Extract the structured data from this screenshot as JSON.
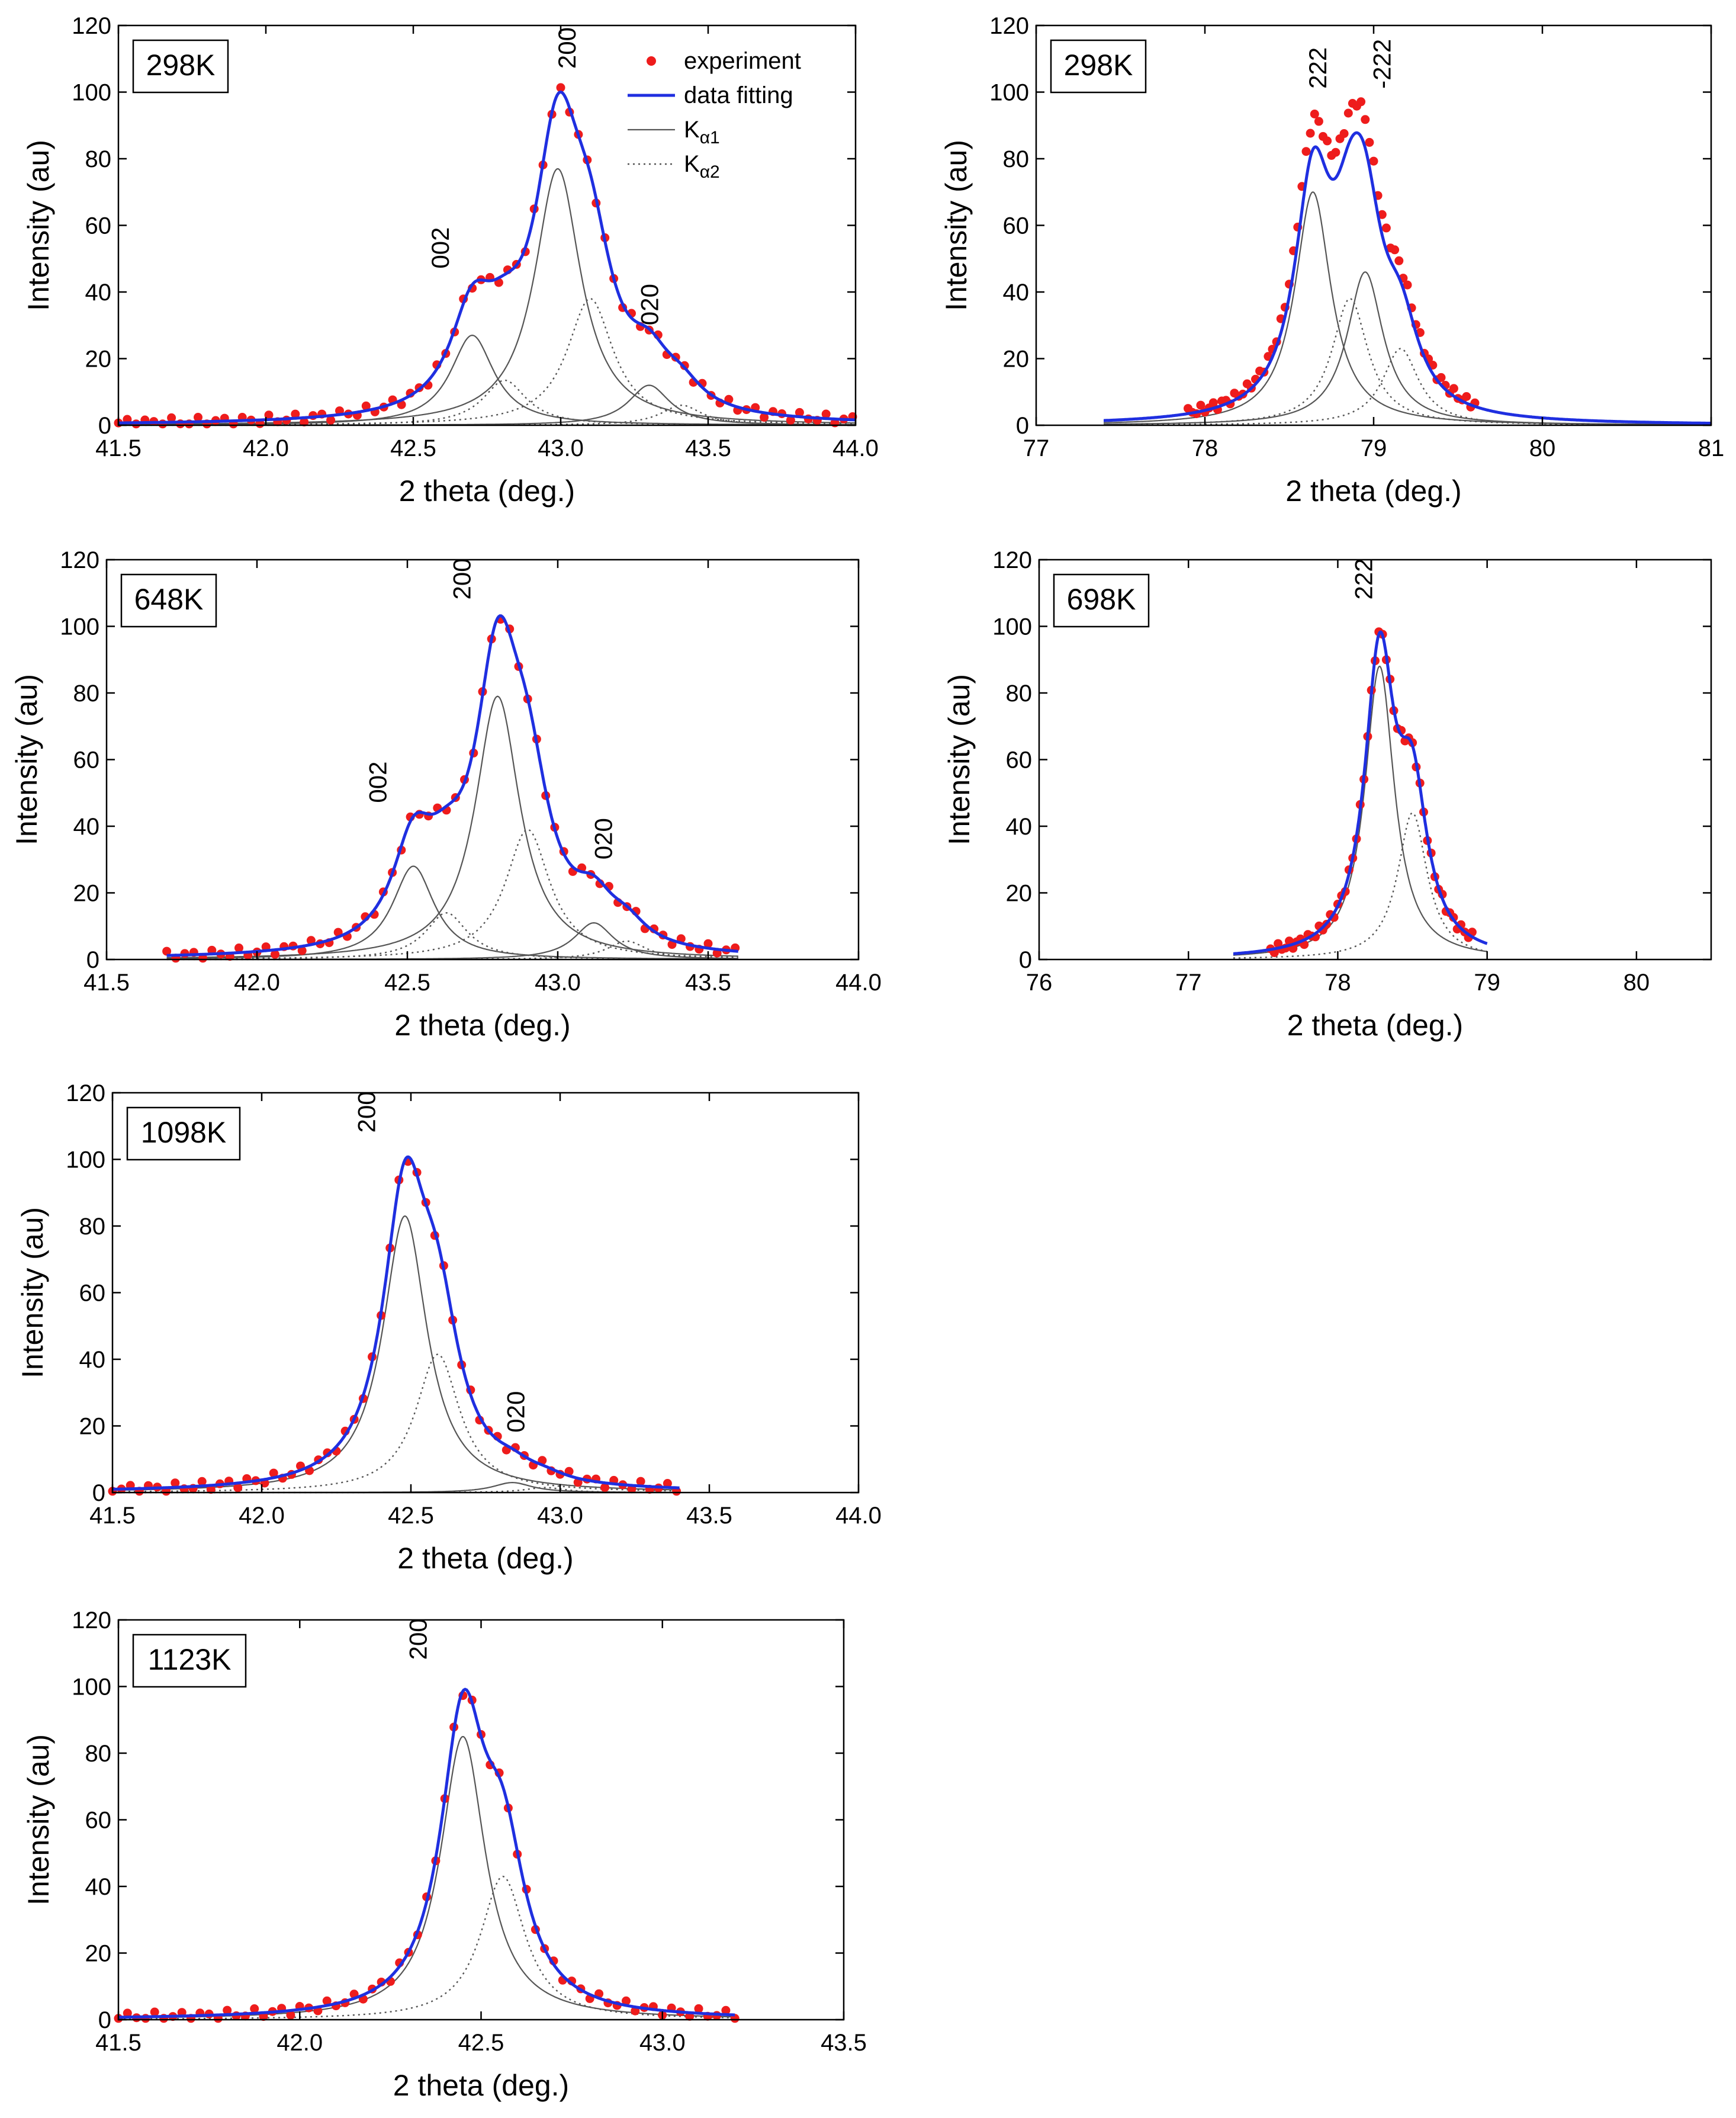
{
  "colors": {
    "experiment": "#ee1c1c",
    "fit": "#1f2fe0",
    "component": "#555555",
    "axis": "#000000"
  },
  "legend_entries": {
    "experiment": "experiment",
    "fit": "data fitting",
    "ka1_prefix": "K",
    "ka1_sub": "α1",
    "ka2_prefix": "K",
    "ka2_sub": "α2"
  },
  "chart_data": [
    {
      "id": "p1",
      "type": "line",
      "title": "298K",
      "xlabel": "2 theta (deg.)",
      "ylabel": "Intensity (au)",
      "xlim": [
        41.5,
        44.0
      ],
      "ylim": [
        0,
        120
      ],
      "xticks": [
        41.5,
        42.0,
        42.5,
        43.0,
        43.5,
        44.0
      ],
      "xtick_labels": [
        "41.5",
        "42.0",
        "42.5",
        "43.0",
        "43.5",
        "44.0"
      ],
      "yticks": [
        0,
        20,
        40,
        60,
        80,
        100,
        120
      ],
      "ytick_labels": [
        "0",
        "20",
        "40",
        "60",
        "80",
        "100",
        "120"
      ],
      "data_range": [
        41.5,
        44.0
      ],
      "exp_range": [
        41.5,
        44.0
      ],
      "exp_step": 0.03,
      "fit_scale": 1.0,
      "show_legend": true,
      "peaks": [
        {
          "label": "002",
          "ka1": {
            "x": 42.7,
            "h": 27,
            "w": 0.09
          },
          "ka2": {
            "x": 42.81,
            "h": 13.5,
            "w": 0.09
          }
        },
        {
          "label": "200",
          "ka1": {
            "x": 42.99,
            "h": 77,
            "w": 0.095
          },
          "ka2": {
            "x": 43.1,
            "h": 38,
            "w": 0.095
          }
        },
        {
          "label": "020",
          "ka1": {
            "x": 43.3,
            "h": 12,
            "w": 0.085
          },
          "ka2": {
            "x": 43.41,
            "h": 6,
            "w": 0.085
          }
        }
      ],
      "peak_labels": [
        {
          "text": "002",
          "x": 42.62,
          "y": 47
        },
        {
          "text": "200",
          "x": 43.05,
          "y": 107
        },
        {
          "text": "020",
          "x": 43.33,
          "y": 30
        }
      ]
    },
    {
      "id": "p2",
      "type": "line",
      "title": "298K",
      "xlabel": "2 theta (deg.)",
      "ylabel": "Intensity (au)",
      "xlim": [
        77,
        81
      ],
      "ylim": [
        0,
        120
      ],
      "xticks": [
        77,
        78,
        79,
        80,
        81
      ],
      "xtick_labels": [
        "77",
        "78",
        "79",
        "80",
        "81"
      ],
      "yticks": [
        0,
        20,
        40,
        60,
        80,
        100,
        120
      ],
      "ytick_labels": [
        "0",
        "20",
        "40",
        "60",
        "80",
        "100",
        "120"
      ],
      "data_range": [
        77.4,
        81.0
      ],
      "exp_range": [
        77.9,
        79.6
      ],
      "exp_step": 0.025,
      "fit_scale": 0.94,
      "show_legend": false,
      "peaks": [
        {
          "label": "222",
          "ka1": {
            "x": 78.64,
            "h": 70,
            "w": 0.13
          },
          "ka2": {
            "x": 78.86,
            "h": 38,
            "w": 0.13
          }
        },
        {
          "label": "-222",
          "ka1": {
            "x": 78.95,
            "h": 46,
            "w": 0.13
          },
          "ka2": {
            "x": 79.16,
            "h": 23,
            "w": 0.13
          }
        }
      ],
      "peak_labels": [
        {
          "text": "222",
          "x": 78.72,
          "y": 101
        },
        {
          "text": "-222",
          "x": 79.1,
          "y": 101
        }
      ]
    },
    {
      "id": "p3",
      "type": "line",
      "title": "648K",
      "xlabel": "2 theta (deg.)",
      "ylabel": "Intensity (au)",
      "xlim": [
        41.5,
        44.0
      ],
      "ylim": [
        0,
        120
      ],
      "xticks": [
        41.5,
        42.0,
        42.5,
        43.0,
        43.5,
        44.0
      ],
      "xtick_labels": [
        "41.5",
        "42.0",
        "42.5",
        "43.0",
        "43.5",
        "44.0"
      ],
      "yticks": [
        0,
        20,
        40,
        60,
        80,
        100,
        120
      ],
      "ytick_labels": [
        "0",
        "20",
        "40",
        "60",
        "80",
        "100",
        "120"
      ],
      "data_range": [
        41.7,
        43.6
      ],
      "exp_range": [
        41.7,
        43.6
      ],
      "exp_step": 0.03,
      "fit_scale": 1.0,
      "show_legend": false,
      "peaks": [
        {
          "label": "002",
          "ka1": {
            "x": 42.52,
            "h": 28,
            "w": 0.085
          },
          "ka2": {
            "x": 42.63,
            "h": 14,
            "w": 0.085
          }
        },
        {
          "label": "200",
          "ka1": {
            "x": 42.8,
            "h": 79,
            "w": 0.09
          },
          "ka2": {
            "x": 42.9,
            "h": 39,
            "w": 0.09
          }
        },
        {
          "label": "020",
          "ka1": {
            "x": 43.12,
            "h": 11,
            "w": 0.08
          },
          "ka2": {
            "x": 43.23,
            "h": 5.5,
            "w": 0.08
          }
        }
      ],
      "peak_labels": [
        {
          "text": "002",
          "x": 42.43,
          "y": 47
        },
        {
          "text": "200",
          "x": 42.71,
          "y": 108
        },
        {
          "text": "020",
          "x": 43.18,
          "y": 30
        }
      ]
    },
    {
      "id": "p4",
      "type": "line",
      "title": "698K",
      "xlabel": "2 theta (deg.)",
      "ylabel": "Intensity (au)",
      "xlim": [
        76,
        80.5
      ],
      "ylim": [
        0,
        120
      ],
      "xticks": [
        76,
        77,
        78,
        79,
        80
      ],
      "xtick_labels": [
        "76",
        "77",
        "78",
        "79",
        "80"
      ],
      "yticks": [
        0,
        20,
        40,
        60,
        80,
        100,
        120
      ],
      "ytick_labels": [
        "0",
        "20",
        "40",
        "60",
        "80",
        "100",
        "120"
      ],
      "data_range": [
        77.3,
        79.0
      ],
      "exp_range": [
        77.55,
        78.9
      ],
      "exp_step": 0.025,
      "fit_scale": 1.0,
      "show_legend": false,
      "peaks": [
        {
          "label": "222",
          "ka1": {
            "x": 78.28,
            "h": 88,
            "w": 0.12
          },
          "ka2": {
            "x": 78.5,
            "h": 44,
            "w": 0.12
          }
        }
      ],
      "peak_labels": [
        {
          "text": "222",
          "x": 78.23,
          "y": 108
        }
      ]
    },
    {
      "id": "p5",
      "type": "line",
      "title": "1098K",
      "xlabel": "2 theta (deg.)",
      "ylabel": "Intensity (au)",
      "xlim": [
        41.5,
        44.0
      ],
      "ylim": [
        0,
        120
      ],
      "xticks": [
        41.5,
        42.0,
        42.5,
        43.0,
        43.5,
        44.0
      ],
      "xtick_labels": [
        "41.5",
        "42.0",
        "42.5",
        "43.0",
        "43.5",
        "44.0"
      ],
      "yticks": [
        0,
        20,
        40,
        60,
        80,
        100,
        120
      ],
      "ytick_labels": [
        "0",
        "20",
        "40",
        "60",
        "80",
        "100",
        "120"
      ],
      "data_range": [
        41.5,
        43.4
      ],
      "exp_range": [
        41.5,
        43.4
      ],
      "exp_step": 0.03,
      "fit_scale": 1.0,
      "show_legend": false,
      "peaks": [
        {
          "label": "200",
          "ka1": {
            "x": 42.48,
            "h": 83,
            "w": 0.09
          },
          "ka2": {
            "x": 42.59,
            "h": 41.5,
            "w": 0.09
          }
        },
        {
          "label": "020",
          "ka1": {
            "x": 42.84,
            "h": 3,
            "w": 0.08
          },
          "ka2": {
            "x": 42.95,
            "h": 1.5,
            "w": 0.08
          }
        }
      ],
      "peak_labels": [
        {
          "text": "200",
          "x": 42.38,
          "y": 108
        },
        {
          "text": "020",
          "x": 42.88,
          "y": 18
        }
      ]
    },
    {
      "id": "p6",
      "type": "line",
      "title": "1123K",
      "xlabel": "2 theta (deg.)",
      "ylabel": "Intensity (au)",
      "xlim": [
        41.5,
        43.5
      ],
      "ylim": [
        0,
        120
      ],
      "xticks": [
        41.5,
        42.0,
        42.5,
        43.0,
        43.5
      ],
      "xtick_labels": [
        "41.5",
        "42.0",
        "42.5",
        "43.0",
        "43.5"
      ],
      "yticks": [
        0,
        20,
        40,
        60,
        80,
        100,
        120
      ],
      "ytick_labels": [
        "0",
        "20",
        "40",
        "60",
        "80",
        "100",
        "120"
      ],
      "data_range": [
        41.5,
        43.2
      ],
      "exp_range": [
        41.5,
        43.2
      ],
      "exp_step": 0.025,
      "fit_scale": 1.0,
      "show_legend": false,
      "peaks": [
        {
          "label": "200",
          "ka1": {
            "x": 42.45,
            "h": 85,
            "w": 0.075
          },
          "ka2": {
            "x": 42.56,
            "h": 43,
            "w": 0.075
          }
        }
      ],
      "peak_labels": [
        {
          "text": "200",
          "x": 42.35,
          "y": 108
        }
      ]
    }
  ]
}
